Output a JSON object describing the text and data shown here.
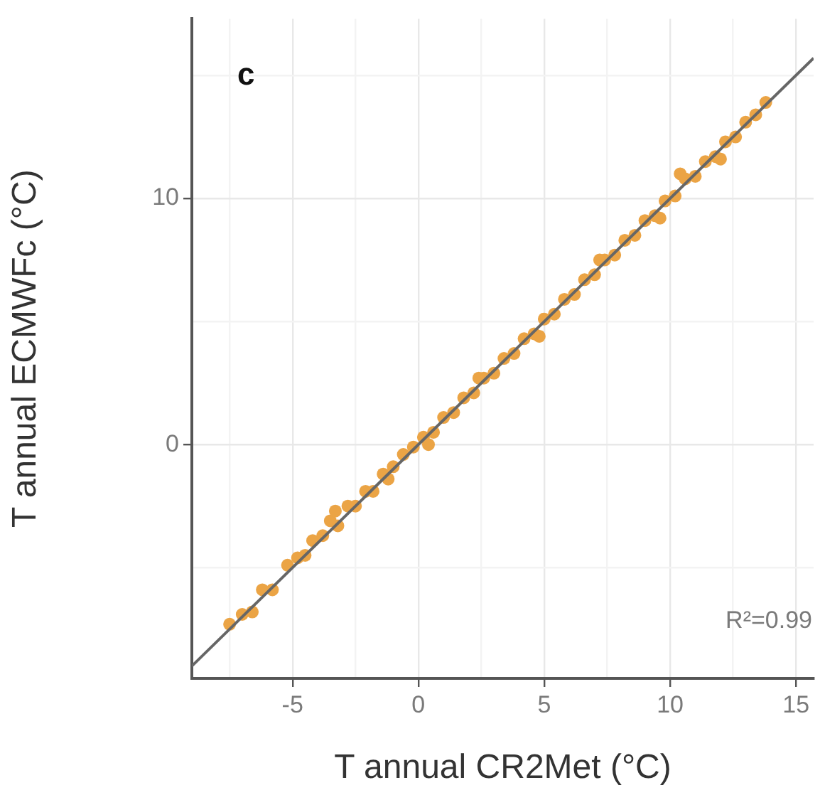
{
  "chart_data": {
    "type": "scatter",
    "xlabel": "T annual CR2Met (°C)",
    "ylabel": "T annual ECMWFc (°C)",
    "annotations": [
      "c",
      "R²=0.99"
    ],
    "xlim": [
      -9,
      15.7
    ],
    "ylim": [
      -9.5,
      17.3
    ],
    "xticks": [
      {
        "value": -7.5,
        "label": null
      },
      -5,
      {
        "value": -2.5,
        "label": null
      },
      0,
      {
        "value": 2.5,
        "label": null
      },
      5,
      {
        "value": 7.5,
        "label": null
      },
      10,
      {
        "value": 12.5,
        "label": null
      },
      15
    ],
    "yticks": [
      {
        "value": -5,
        "label": null
      },
      0,
      {
        "value": 5,
        "label": null
      },
      10,
      {
        "value": 15,
        "label": null
      }
    ],
    "grid": true,
    "marker": "circle",
    "series": [
      {
        "color": "#eba445",
        "x": [
          -7.5,
          -7,
          -6.6,
          -6.2,
          -5.8,
          -5.2,
          -4.8,
          -4.5,
          -4.2,
          -3.8,
          -3.5,
          -3.2,
          -2.8,
          -2.5,
          -2.1,
          -1.8,
          -1.4,
          -1,
          -0.6,
          -0.2,
          0.2,
          0.6,
          1,
          1.4,
          1.8,
          2.2,
          2.6,
          3,
          3.4,
          3.8,
          4.2,
          4.6,
          5,
          5.4,
          5.8,
          6.2,
          6.6,
          7,
          7.4,
          7.8,
          8.2,
          8.6,
          9,
          9.4,
          9.8,
          10.2,
          10.6,
          11,
          11.4,
          11.8,
          12.2,
          12.6,
          13,
          13.4,
          13.8,
          -3.3,
          -1.2,
          0.4,
          2.4,
          4.8,
          7.2,
          9.6,
          10.4,
          12
        ],
        "values": [
          -7.3,
          -6.9,
          -6.8,
          -5.9,
          -5.9,
          -4.9,
          -4.6,
          -4.5,
          -3.9,
          -3.7,
          -3.1,
          -3.3,
          -2.5,
          -2.5,
          -1.9,
          -1.9,
          -1.2,
          -0.9,
          -0.4,
          -0.1,
          0.3,
          0.5,
          1.1,
          1.3,
          1.9,
          2.1,
          2.7,
          2.9,
          3.5,
          3.7,
          4.3,
          4.5,
          5.1,
          5.3,
          5.9,
          6.1,
          6.7,
          6.9,
          7.5,
          7.7,
          8.3,
          8.5,
          9.1,
          9.3,
          9.9,
          10.1,
          10.8,
          10.9,
          11.5,
          11.7,
          12.3,
          12.5,
          13.1,
          13.4,
          13.9,
          -2.7,
          -1.4,
          0,
          2.7,
          4.4,
          7.5,
          9.2,
          11,
          11.6
        ]
      },
      {
        "type": "line",
        "marker": "none",
        "color": "#666666",
        "x": [
          -9,
          15.7
        ],
        "values": [
          -9,
          15.7
        ]
      }
    ]
  }
}
